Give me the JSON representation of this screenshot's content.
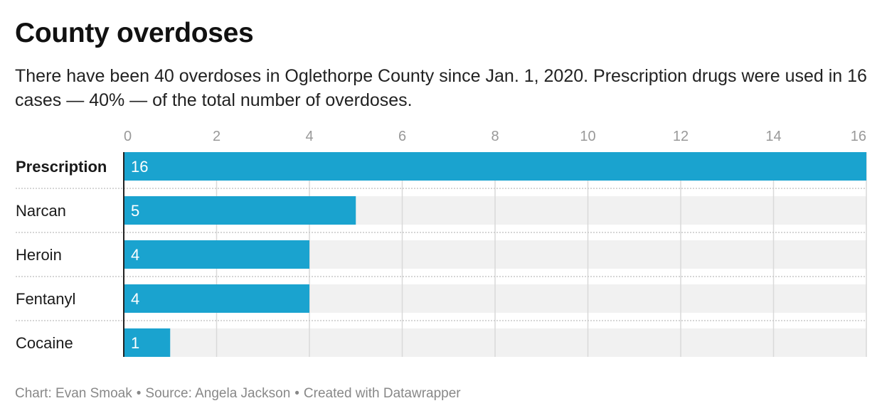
{
  "title": "County overdoses",
  "subtitle": "There have been 40 overdoses in Oglethorpe County since Jan. 1, 2020. Prescription drugs were used in 16 cases — 40% — of the total number of overdoses.",
  "footer": {
    "chart_credit": "Chart: Evan Smoak",
    "source": "Source: Angela Jackson",
    "created_with": "Created with Datawrapper"
  },
  "colors": {
    "bar": "#1aa3cf",
    "bar_background": "#f1f1f1",
    "gridline": "#d9d9d9",
    "tick_label": "#999999",
    "value_label": "#ffffff"
  },
  "chart_data": {
    "type": "bar",
    "orientation": "horizontal",
    "categories": [
      "Prescription",
      "Narcan",
      "Heroin",
      "Fentanyl",
      "Cocaine"
    ],
    "values": [
      16,
      5,
      4,
      4,
      1
    ],
    "highlighted_category": "Prescription",
    "xlim": [
      0,
      16
    ],
    "xticks": [
      0,
      2,
      4,
      6,
      8,
      10,
      12,
      14,
      16
    ],
    "tick_position": "top",
    "data_labels": "inside-bar",
    "grid": true,
    "legend": false,
    "title": "",
    "xlabel": "",
    "ylabel": ""
  }
}
